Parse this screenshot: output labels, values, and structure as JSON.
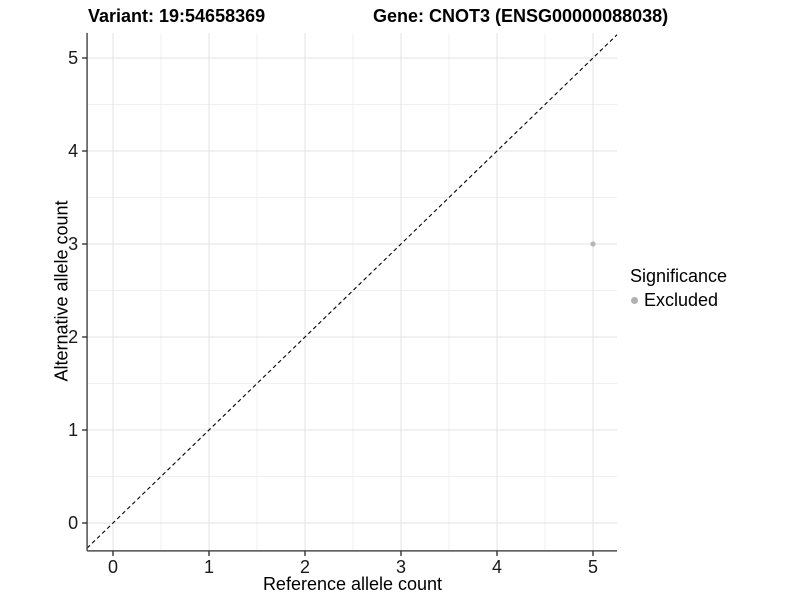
{
  "header": {
    "variant_title": "Variant: 19:54658369",
    "gene_title": "Gene: CNOT3 (ENSG00000088038)"
  },
  "chart_data": {
    "type": "scatter",
    "title": "Variant: 19:54658369   Gene: CNOT3 (ENSG00000088038)",
    "xlabel": "Reference allele count",
    "ylabel": "Alternative allele count",
    "xlim": [
      -0.27,
      5.25
    ],
    "ylim": [
      -0.3,
      5.27
    ],
    "x_ticks": [
      0,
      1,
      2,
      3,
      4,
      5
    ],
    "y_ticks": [
      0,
      1,
      2,
      3,
      4,
      5
    ],
    "x_minor_ticks": [
      0.5,
      1.5,
      2.5,
      3.5,
      4.5
    ],
    "y_minor_ticks": [
      0.5,
      1.5,
      2.5,
      3.5,
      4.5
    ],
    "grid": "major+minor",
    "series": [
      {
        "name": "Excluded",
        "color": "#b5b5b5",
        "points": [
          {
            "x": 5,
            "y": 3
          }
        ]
      }
    ],
    "reference_line": {
      "type": "identity y=x",
      "style": "dashed",
      "color": "#000000"
    },
    "legend": {
      "title": "Significance",
      "position": "right",
      "entries": [
        {
          "label": "Excluded",
          "color": "#b0b0b0",
          "marker": "circle"
        }
      ]
    },
    "style": {
      "background": "#ffffff",
      "grid_major_color": "#e3e3e3",
      "grid_minor_color": "#f0f0f0",
      "axis_line_color": "#4d4d4d",
      "tick_color": "#333333",
      "tick_label_color": "#1a1a1a"
    }
  }
}
